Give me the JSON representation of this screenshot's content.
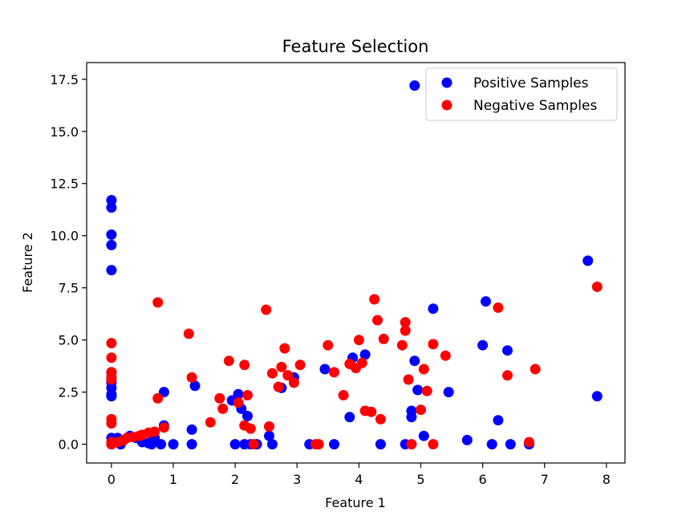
{
  "chart_data": {
    "type": "scatter",
    "title": "Feature Selection",
    "xlabel": "Feature 1",
    "ylabel": "Feature 2",
    "xlim": [
      -0.4,
      8.3
    ],
    "ylim": [
      -0.9,
      18.3
    ],
    "xticks": [
      0,
      1,
      2,
      3,
      4,
      5,
      6,
      7,
      8
    ],
    "yticks": [
      0.0,
      2.5,
      5.0,
      7.5,
      10.0,
      12.5,
      15.0,
      17.5
    ],
    "xtick_labels": [
      "0",
      "1",
      "2",
      "3",
      "4",
      "5",
      "6",
      "7",
      "8"
    ],
    "ytick_labels": [
      "0.0",
      "2.5",
      "5.0",
      "7.5",
      "10.0",
      "12.5",
      "15.0",
      "17.5"
    ],
    "grid": false,
    "legend_position": "top-right",
    "series": [
      {
        "name": "Positive Samples",
        "color": "#0000ff",
        "x": [
          0,
          0,
          0,
          0,
          0,
          0,
          0,
          0,
          0,
          0,
          0,
          0,
          0.05,
          0.1,
          0.15,
          0.2,
          0.3,
          0.4,
          0.5,
          0.6,
          0.65,
          0.7,
          0.8,
          0.85,
          0.85,
          1.0,
          1.3,
          1.3,
          1.35,
          1.95,
          2.0,
          2.05,
          2.1,
          2.15,
          2.2,
          2.25,
          2.35,
          2.55,
          2.6,
          2.75,
          2.95,
          3.2,
          3.45,
          3.6,
          3.85,
          3.9,
          4.1,
          4.35,
          4.75,
          4.85,
          4.85,
          4.9,
          4.9,
          4.95,
          5.05,
          5.2,
          5.45,
          5.75,
          6.0,
          6.05,
          6.15,
          6.25,
          6.4,
          6.45,
          6.75,
          7.7,
          7.85
        ],
        "y": [
          11.7,
          11.35,
          10.05,
          9.55,
          8.35,
          3.45,
          2.95,
          2.7,
          2.4,
          2.3,
          0.3,
          0.0,
          0.1,
          0.3,
          0.0,
          0.2,
          0.4,
          0.3,
          0.1,
          0.05,
          0.0,
          0.3,
          0.0,
          0.9,
          2.5,
          0.0,
          0.7,
          0.0,
          2.8,
          2.1,
          0.0,
          2.4,
          1.7,
          0.0,
          1.35,
          0.0,
          0.0,
          0.4,
          0.0,
          2.7,
          3.2,
          0.0,
          3.6,
          0.0,
          1.3,
          4.15,
          4.3,
          0.0,
          0.0,
          1.6,
          1.3,
          17.2,
          4.0,
          2.6,
          0.4,
          6.5,
          2.5,
          0.2,
          4.75,
          6.85,
          0.0,
          1.15,
          4.5,
          0.0,
          0.0,
          8.8,
          2.3
        ]
      },
      {
        "name": "Negative Samples",
        "color": "#ff0000",
        "x": [
          0,
          0,
          0,
          0,
          0,
          0,
          0,
          0,
          0,
          0.1,
          0.2,
          0.25,
          0.35,
          0.45,
          0.5,
          0.6,
          0.7,
          0.75,
          0.75,
          0.85,
          1.25,
          1.3,
          1.6,
          1.75,
          1.8,
          1.9,
          2.05,
          2.15,
          2.15,
          2.2,
          2.25,
          2.3,
          2.5,
          2.55,
          2.6,
          2.7,
          2.75,
          2.8,
          2.85,
          2.95,
          3.05,
          3.3,
          3.35,
          3.5,
          3.6,
          3.75,
          3.85,
          3.95,
          4.0,
          4.05,
          4.1,
          4.2,
          4.25,
          4.3,
          4.35,
          4.4,
          4.7,
          4.75,
          4.75,
          4.8,
          4.85,
          5.0,
          5.05,
          5.1,
          5.2,
          5.2,
          5.4,
          6.25,
          6.4,
          6.75,
          6.85,
          7.85
        ],
        "y": [
          4.85,
          4.15,
          3.45,
          3.25,
          3.1,
          1.2,
          1.0,
          0.1,
          0.0,
          0.1,
          0.2,
          0.3,
          0.35,
          0.4,
          0.45,
          0.55,
          0.6,
          6.8,
          2.2,
          0.8,
          5.3,
          3.2,
          1.05,
          2.2,
          1.7,
          4.0,
          2.0,
          0.9,
          3.8,
          2.35,
          0.75,
          0.0,
          6.45,
          0.85,
          3.4,
          2.75,
          3.7,
          4.6,
          3.3,
          2.95,
          3.8,
          0.0,
          0.0,
          4.75,
          3.45,
          2.35,
          3.85,
          3.65,
          5.0,
          3.9,
          1.6,
          1.55,
          6.95,
          5.95,
          1.2,
          5.05,
          4.75,
          5.85,
          5.45,
          3.1,
          0.0,
          1.65,
          3.6,
          2.55,
          0.0,
          4.8,
          4.25,
          6.55,
          3.3,
          0.1,
          3.6,
          7.55
        ]
      }
    ]
  }
}
